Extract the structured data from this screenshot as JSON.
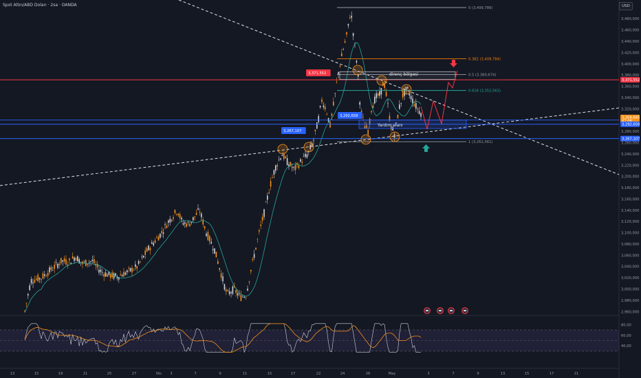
{
  "header": {
    "symbol_title": "Spot Altın/ABD Doları · 2sa · OANDA",
    "currency_button": "USD"
  },
  "price_axis": {
    "ticks": [
      "3,480,000",
      "3,460,000",
      "3,440,000",
      "3,420,000",
      "3,400,000",
      "3,380,000",
      "3,360,000",
      "3,340,000",
      "3,320,000",
      "3,300,000",
      "3,280,000",
      "3,260,000",
      "3,240,000",
      "3,220,000",
      "3,200,000",
      "3,180,000",
      "3,160,000",
      "3,140,000",
      "3,120,000",
      "3,100,000",
      "3,080,000",
      "3,060,000",
      "3,040,000",
      "3,020,000",
      "3,000,000",
      "2,980,000",
      "2,960,000"
    ],
    "tick_values": [
      3480,
      3460,
      3440,
      3420,
      3400,
      3380,
      3360,
      3340,
      3320,
      3300,
      3280,
      3260,
      3240,
      3220,
      3200,
      3180,
      3160,
      3140,
      3120,
      3100,
      3080,
      3060,
      3040,
      3020,
      3000,
      2980,
      2960
    ],
    "tags": [
      {
        "text": "3,371,552",
        "value": 3371.552,
        "color": "#f23645"
      },
      {
        "text": "3,304,645",
        "value": 3304.645,
        "color": "#f7931a",
        "sub": "47:06"
      },
      {
        "text": "3,292,658",
        "value": 3292.658,
        "color": "#2962ff"
      },
      {
        "text": "3,267,107",
        "value": 3267.107,
        "color": "#2962ff"
      }
    ]
  },
  "time_axis": {
    "labels": [
      "13",
      "15",
      "19",
      "21",
      "25",
      "27",
      "Nis",
      "3",
      "7",
      "9",
      "11",
      "15",
      "17",
      "22",
      "24",
      "26",
      "May",
      "3",
      "7",
      "9",
      "13",
      "15",
      "17",
      "21"
    ]
  },
  "rsi_axis": {
    "ticks": [
      "80,00",
      "60,00",
      "40,00"
    ],
    "tick_values": [
      80,
      60,
      40
    ]
  },
  "fibonacci": [
    {
      "label": "0 (3,499,786)",
      "value": 3499.786,
      "color": "#9598a1"
    },
    {
      "label": "0.382 (3,408,784)",
      "value": 3408.784,
      "color": "#f57c00"
    },
    {
      "label": "0.5 (3,380,674)",
      "value": 3380.674,
      "color": "#9598a1"
    },
    {
      "label": "0.618 (3,352,563)",
      "value": 3352.563,
      "color": "#26a69a"
    },
    {
      "label": "1 (3,261,561)",
      "value": 3261.561,
      "color": "#9598a1"
    }
  ],
  "annotations": {
    "resistance_zone": "direnç bölgesi",
    "support_zone": "Yardım alanı",
    "tag_high_line": "3,371,552",
    "tag_mid_line": "3,292,658",
    "tag_low_line": "3,267,107"
  },
  "colors": {
    "background": "#141823",
    "candle": "#f7931a",
    "candle_down": "#d1d4dc",
    "ma": "#26a69a",
    "resistance_line": "#f23645",
    "support_line": "#2962ff",
    "rsi": "#d1d4dc",
    "rsi_ma": "#f7931a",
    "forecast": "#f23645"
  },
  "icons": [
    "event-flag-icon",
    "event-flag-icon",
    "event-flag-icon",
    "event-flag-icon",
    "arrow-down-icon",
    "arrow-up-icon"
  ]
}
